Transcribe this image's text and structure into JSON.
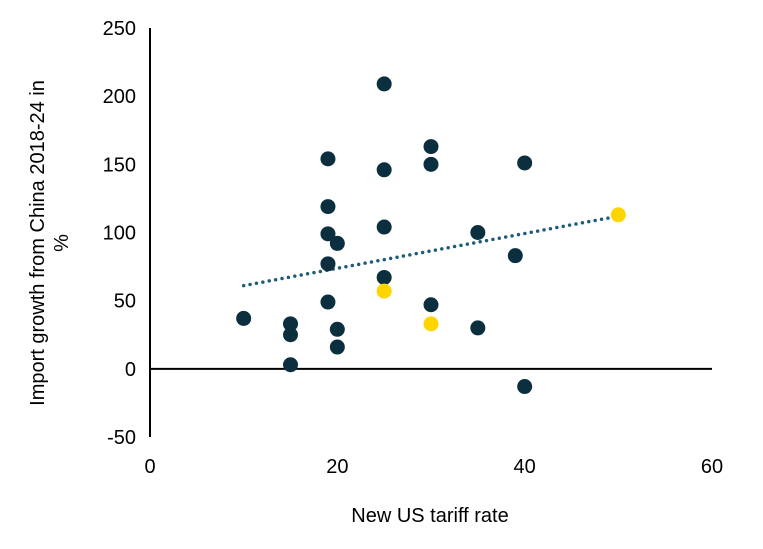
{
  "chart_data": {
    "type": "scatter",
    "title": "",
    "xlabel": "New US tariff rate",
    "ylabel_lines": [
      "Import growth from China 2018-24 in",
      "%"
    ],
    "xlim": [
      0,
      60
    ],
    "ylim": [
      -50,
      250
    ],
    "x_ticks": [
      "0",
      "20",
      "40",
      "60"
    ],
    "y_ticks": [
      "250",
      "200",
      "150",
      "100",
      "50",
      "0",
      "-50"
    ],
    "grid": false,
    "legend": "none",
    "colors": {
      "points": "#0b2f3f",
      "highlight": "#ffd500",
      "trendline": "#1f5b7a",
      "axis": "#000000"
    },
    "series": [
      {
        "color": "#0b2f3f",
        "points": [
          {
            "x": 10,
            "y": 37
          },
          {
            "x": 15,
            "y": 33
          },
          {
            "x": 15,
            "y": 25
          },
          {
            "x": 15,
            "y": 3
          },
          {
            "x": 19,
            "y": 154
          },
          {
            "x": 19,
            "y": 119
          },
          {
            "x": 19,
            "y": 99
          },
          {
            "x": 19,
            "y": 77
          },
          {
            "x": 19,
            "y": 49
          },
          {
            "x": 20,
            "y": 92
          },
          {
            "x": 20,
            "y": 29
          },
          {
            "x": 20,
            "y": 16
          },
          {
            "x": 25,
            "y": 209
          },
          {
            "x": 25,
            "y": 146
          },
          {
            "x": 25,
            "y": 104
          },
          {
            "x": 25,
            "y": 67
          },
          {
            "x": 30,
            "y": 163
          },
          {
            "x": 30,
            "y": 150
          },
          {
            "x": 30,
            "y": 47
          },
          {
            "x": 35,
            "y": 100
          },
          {
            "x": 35,
            "y": 30
          },
          {
            "x": 39,
            "y": 83
          },
          {
            "x": 40,
            "y": 151
          },
          {
            "x": 40,
            "y": -13
          }
        ]
      },
      {
        "color": "#ffd500",
        "points": [
          {
            "x": 25,
            "y": 57
          },
          {
            "x": 30,
            "y": 33
          },
          {
            "x": 50,
            "y": 113
          }
        ]
      }
    ],
    "trendline": {
      "style": "dotted",
      "x": [
        10,
        50
      ],
      "y": [
        61,
        112
      ]
    }
  }
}
